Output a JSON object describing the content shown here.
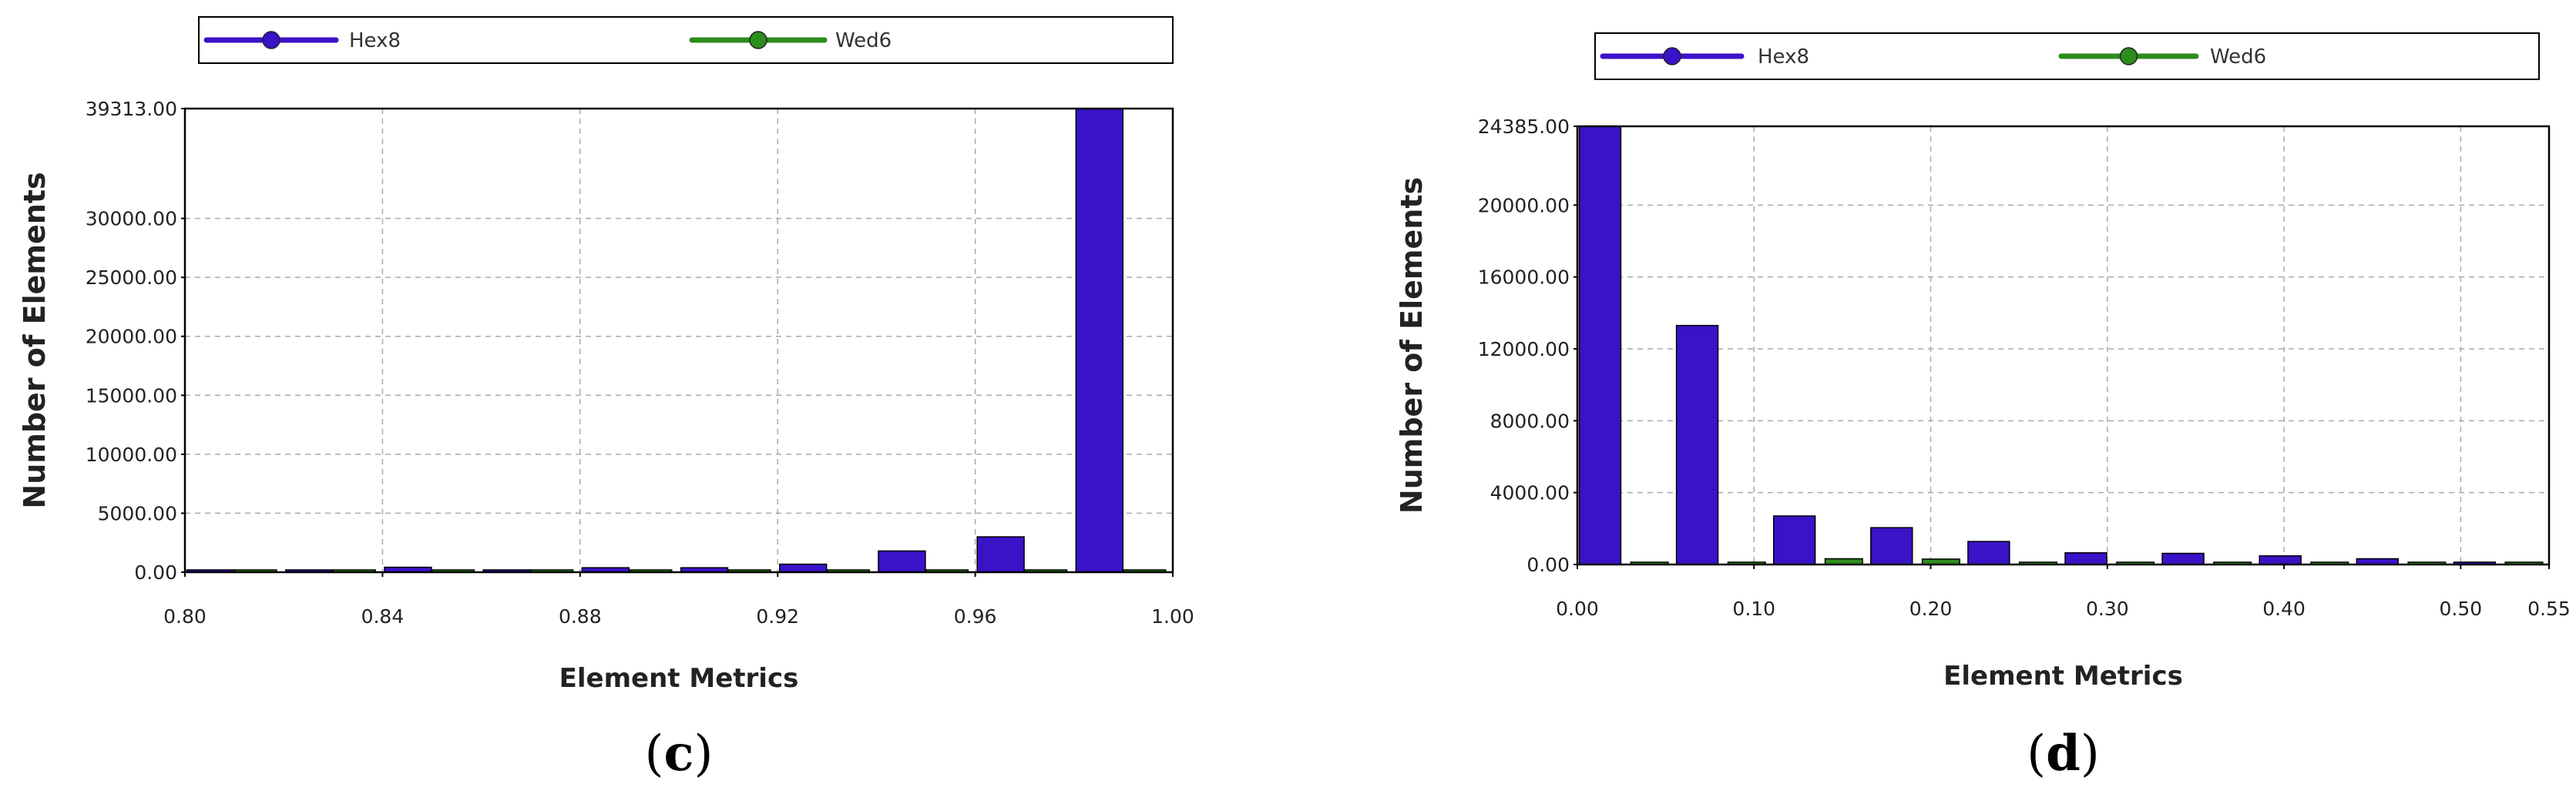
{
  "chart_data": [
    {
      "type": "bar",
      "panel_label": "c",
      "title": "",
      "xlabel": "Element Metrics",
      "ylabel": "Number of Elements",
      "legend": [
        "Hex8",
        "Wed6"
      ],
      "legend_position": "top",
      "grid": true,
      "xlim": [
        0.8,
        1.0
      ],
      "ylim": [
        0,
        39313
      ],
      "x_ticks": [
        "0.80",
        "0.84",
        "0.88",
        "0.92",
        "0.96",
        "1.00"
      ],
      "y_ticks": [
        "0.00",
        "5000.00",
        "10000.00",
        "15000.00",
        "20000.00",
        "25000.00",
        "30000.00",
        "39313.00"
      ],
      "bin_centers": [
        0.81,
        0.83,
        0.85,
        0.87,
        0.89,
        0.91,
        0.93,
        0.95,
        0.97,
        0.99
      ],
      "series": [
        {
          "name": "Hex8",
          "color": "#3a12c8",
          "values": [
            150,
            150,
            420,
            150,
            380,
            380,
            680,
            1800,
            3000,
            39313
          ]
        },
        {
          "name": "Wed6",
          "color": "#2e8b1e",
          "values": [
            20,
            20,
            40,
            20,
            40,
            40,
            40,
            40,
            40,
            40
          ]
        }
      ]
    },
    {
      "type": "bar",
      "panel_label": "d",
      "title": "",
      "xlabel": "Element Metrics",
      "ylabel": "Number of Elements",
      "legend": [
        "Hex8",
        "Wed6"
      ],
      "legend_position": "top",
      "grid": true,
      "xlim": [
        0.0,
        0.55
      ],
      "ylim": [
        0,
        24385
      ],
      "x_ticks": [
        "0.00",
        "0.10",
        "0.20",
        "0.30",
        "0.40",
        "0.50",
        "0.55"
      ],
      "y_ticks": [
        "0.00",
        "4000.00",
        "8000.00",
        "12000.00",
        "16000.00",
        "20000.00",
        "24385.00"
      ],
      "bin_centers": [
        0.0275,
        0.0825,
        0.1375,
        0.1925,
        0.2475,
        0.3025,
        0.3575,
        0.4125,
        0.4675,
        0.5225
      ],
      "series": [
        {
          "name": "Hex8",
          "color": "#3a12c8",
          "values": [
            24385,
            13300,
            2700,
            2050,
            1280,
            650,
            620,
            480,
            320,
            130
          ]
        },
        {
          "name": "Wed6",
          "color": "#2e8b1e",
          "values": [
            50,
            50,
            320,
            300,
            60,
            30,
            30,
            30,
            30,
            20
          ]
        }
      ]
    }
  ]
}
